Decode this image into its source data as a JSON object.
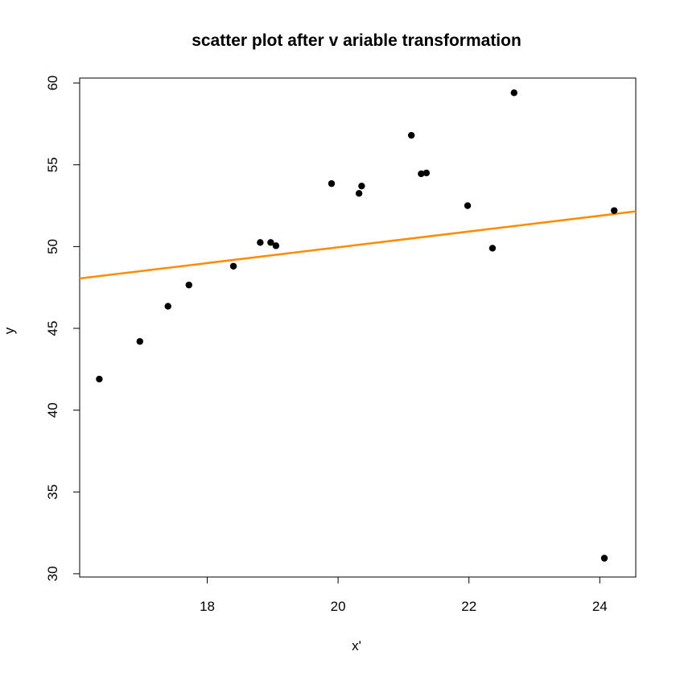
{
  "chart_data": {
    "type": "scatter",
    "title": "scatter plot after v ariable transformation",
    "xlabel": "x'",
    "ylabel": "y",
    "xlim": [
      16.05,
      24.55
    ],
    "ylim": [
      29.8,
      60.3
    ],
    "xticks": [
      18,
      20,
      22,
      24
    ],
    "yticks": [
      30,
      35,
      40,
      45,
      50,
      55,
      60
    ],
    "grid": false,
    "points": [
      {
        "x": 16.35,
        "y": 41.9
      },
      {
        "x": 16.97,
        "y": 44.2
      },
      {
        "x": 17.4,
        "y": 46.35
      },
      {
        "x": 17.72,
        "y": 47.65
      },
      {
        "x": 18.4,
        "y": 48.8
      },
      {
        "x": 18.81,
        "y": 50.25
      },
      {
        "x": 18.97,
        "y": 50.25
      },
      {
        "x": 19.05,
        "y": 50.05
      },
      {
        "x": 19.9,
        "y": 53.85
      },
      {
        "x": 20.32,
        "y": 53.25
      },
      {
        "x": 20.36,
        "y": 53.7
      },
      {
        "x": 21.12,
        "y": 56.8
      },
      {
        "x": 21.27,
        "y": 54.45
      },
      {
        "x": 21.35,
        "y": 54.5
      },
      {
        "x": 21.98,
        "y": 52.5
      },
      {
        "x": 22.36,
        "y": 49.9
      },
      {
        "x": 22.69,
        "y": 59.4
      },
      {
        "x": 24.07,
        "y": 30.95
      },
      {
        "x": 24.22,
        "y": 52.2
      }
    ],
    "fit_line": {
      "x1": 16.05,
      "y1": 48.05,
      "x2": 24.55,
      "y2": 52.15,
      "color": "#ff8c00"
    },
    "point_color": "#000000"
  }
}
